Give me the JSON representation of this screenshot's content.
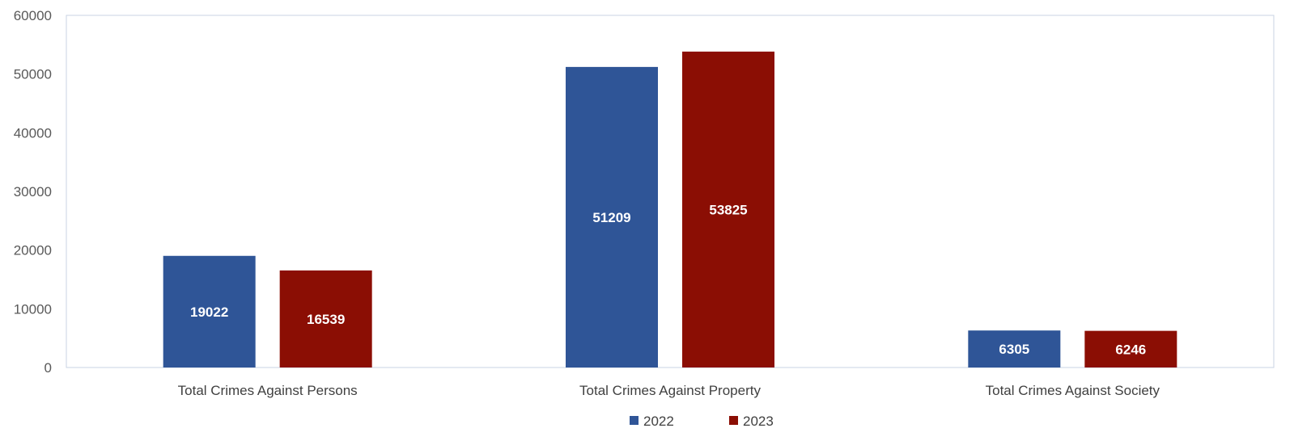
{
  "chart_data": {
    "type": "bar",
    "title": "",
    "xlabel": "",
    "ylabel": "",
    "categories": [
      "Total Crimes Against Persons",
      "Total Crimes Against Property",
      "Total Crimes Against Society"
    ],
    "series": [
      {
        "name": "2022",
        "values": [
          19022,
          51209,
          6305
        ],
        "color": "#2F5597"
      },
      {
        "name": "2023",
        "values": [
          16539,
          53825,
          6246
        ],
        "color": "#8B0E04"
      }
    ],
    "ylim": [
      0,
      60000
    ],
    "yticks": [
      0,
      10000,
      20000,
      30000,
      40000,
      50000,
      60000
    ],
    "grid": false,
    "legend": "bottom",
    "data_labels": true
  }
}
